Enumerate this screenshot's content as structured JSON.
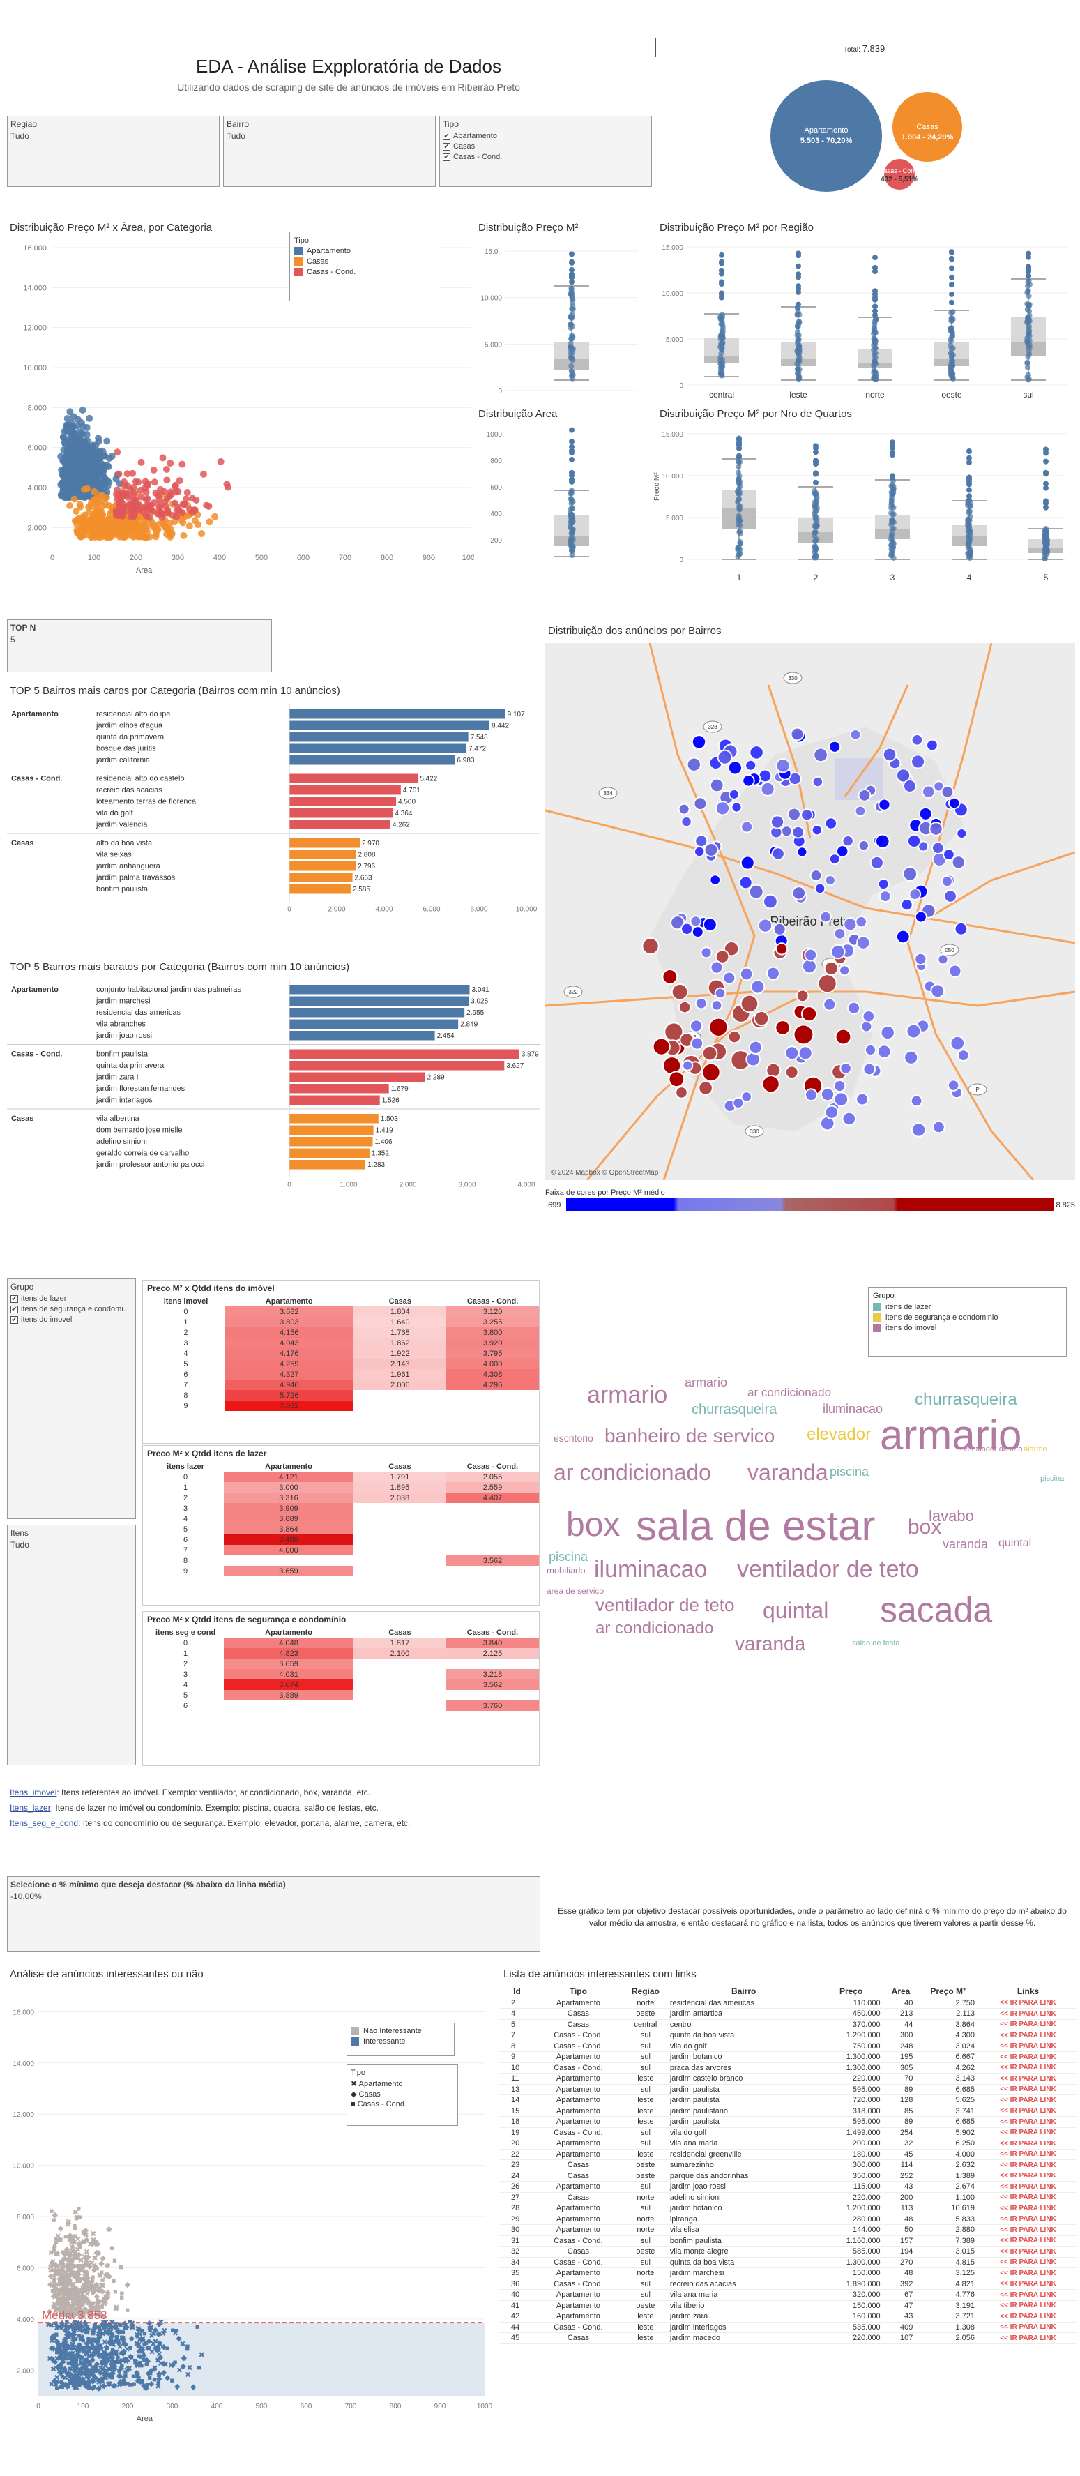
{
  "header": {
    "title": "EDA - Análise Expploratória de Dados",
    "subtitle": "Utilizando dados de scraping de site de anúncios de imóveis em Ribeirão Preto"
  },
  "total": {
    "label": "Total:",
    "value": "7.839"
  },
  "pie": {
    "apartamento": "Apartamento",
    "apartamento_val": "5.503 - 70,20%",
    "casas": "Casas",
    "casas_val": "1.904 - 24,29%",
    "cond": "Casas - Cond.",
    "cond_val": "432 - 5,51%"
  },
  "filters": {
    "regiao_label": "Regiao",
    "regiao_value": "Tudo",
    "bairro_label": "Bairro",
    "bairro_value": "Tudo",
    "tipo_label": "Tipo",
    "tipo_options": [
      "Apartamento",
      "Casas",
      "Casas - Cond."
    ]
  },
  "colors": {
    "apartamento": "#4e79a7",
    "casas": "#f28e2b",
    "casas_cond": "#e15759",
    "map_low": "#0000ff",
    "map_high": "#b20000"
  },
  "scatter": {
    "title": "Distribuição Preço M² x Área, por Categoria",
    "xlabel": "Area",
    "legend_title": "Tipo",
    "legend": [
      "Apartamento",
      "Casas",
      "Casas - Cond."
    ],
    "yticks": [
      "16.000",
      "14.000",
      "12.000",
      "10.000",
      "8.000",
      "6.000",
      "4.000",
      "2.000"
    ],
    "xticks": [
      "0",
      "100",
      "200",
      "300",
      "400",
      "500",
      "600",
      "700",
      "800",
      "900",
      "1000"
    ]
  },
  "box_preco": {
    "title": "Distribuição Preço M²",
    "yticks": [
      "15.0..",
      "10.000",
      "5.000",
      "0"
    ]
  },
  "box_area": {
    "title": "Distribuição Area",
    "yticks": [
      "1000",
      "800",
      "600",
      "400",
      "200"
    ]
  },
  "box_regiao": {
    "title": "Distribuição Preço M² por Região",
    "yticks": [
      "15.000",
      "10.000",
      "5.000",
      "0"
    ],
    "categories": [
      "central",
      "leste",
      "norte",
      "oeste",
      "sul"
    ]
  },
  "box_quartos": {
    "title": "Distribuição Preço M² por Nro de Quartos",
    "ylabel": "Preço M²",
    "yticks": [
      "15.000",
      "10.000",
      "5.000",
      "0"
    ],
    "categories": [
      "1",
      "2",
      "3",
      "4",
      "5"
    ]
  },
  "topn": {
    "label": "TOP N",
    "value": "5"
  },
  "caros": {
    "title": "TOP 5 Bairros mais caros por Categoria (Bairros com min 10 anúncios)",
    "xticks": [
      "0",
      "2.000",
      "4.000",
      "6.000",
      "8.000",
      "10.000"
    ],
    "groups": [
      {
        "name": "Apartamento",
        "rows": [
          [
            "residencial alto do ipe",
            "9.107",
            9107
          ],
          [
            "jardim olhos d'agua",
            "8.442",
            8442
          ],
          [
            "quinta da primavera",
            "7.548",
            7548
          ],
          [
            "bosque das juritis",
            "7.472",
            7472
          ],
          [
            "jardim california",
            "6.983",
            6983
          ]
        ]
      },
      {
        "name": "Casas - Cond.",
        "rows": [
          [
            "residencial alto do castelo",
            "5.422",
            5422
          ],
          [
            "recreio das acacias",
            "4.701",
            4701
          ],
          [
            "loteamento terras de florenca",
            "4.500",
            4500
          ],
          [
            "vila do golf",
            "4.364",
            4364
          ],
          [
            "jardim valencia",
            "4.262",
            4262
          ]
        ]
      },
      {
        "name": "Casas",
        "rows": [
          [
            "alto da boa vista",
            "2.970",
            2970
          ],
          [
            "vila seixas",
            "2.808",
            2808
          ],
          [
            "jardim anhanguera",
            "2.796",
            2796
          ],
          [
            "jardim palma travassos",
            "2.663",
            2663
          ],
          [
            "bonfim paulista",
            "2.585",
            2585
          ]
        ]
      }
    ]
  },
  "baratos": {
    "title": "TOP 5 Bairros mais baratos por Categoria (Bairros com min 10 anúncios)",
    "xticks": [
      "0",
      "1.000",
      "2.000",
      "3.000",
      "4.000"
    ],
    "groups": [
      {
        "name": "Apartamento",
        "rows": [
          [
            "conjunto habitacional jardim das palmeiras",
            "3.041",
            3041
          ],
          [
            "jardim marchesi",
            "3.025",
            3025
          ],
          [
            "residencial das americas",
            "2.955",
            2955
          ],
          [
            "vila abranches",
            "2.849",
            2849
          ],
          [
            "jardim joao rossi",
            "2.454",
            2454
          ]
        ]
      },
      {
        "name": "Casas - Cond.",
        "rows": [
          [
            "bonfim paulista",
            "3.879",
            3879
          ],
          [
            "quinta da primavera",
            "3.627",
            3627
          ],
          [
            "jardim zara I",
            "2.289",
            2289
          ],
          [
            "jardim florestan fernandes",
            "1.679",
            1679
          ],
          [
            "jardim interlagos",
            "1.526",
            1526
          ]
        ]
      },
      {
        "name": "Casas",
        "rows": [
          [
            "vila albertina",
            "1.503",
            1503
          ],
          [
            "dom bernardo jose mielle",
            "1.419",
            1419
          ],
          [
            "adelino simioni",
            "1.406",
            1406
          ],
          [
            "geraldo correia de carvalho",
            "1.352",
            1352
          ],
          [
            "jardim professor antonio palocci",
            "1.283",
            1283
          ]
        ]
      }
    ]
  },
  "map": {
    "title": "Distribuição dos anúncios por Bairros",
    "city": "Ribeirão Preto",
    "attribution": "© 2024 Mapbox © OpenStreetMap",
    "legend_title": "Faixa de cores por Preço M² médio",
    "legend_min": "699",
    "legend_max": "8.825",
    "roads": [
      "330",
      "328",
      "334",
      "322",
      "333",
      "051",
      "050",
      "P"
    ]
  },
  "grupo_filter": {
    "label": "Grupo",
    "options": [
      "itens de lazer",
      "itens de segurança e condomi..",
      "itens do imovel"
    ]
  },
  "itens_filter": {
    "label": "Itens",
    "value": "Tudo"
  },
  "hm_imovel": {
    "title": "Preco M² x Qtdd  itens do imóvel",
    "headers": [
      "itens imovel",
      "Apartamento",
      "Casas",
      "Casas - Cond."
    ],
    "rows": [
      [
        "0",
        "3.682",
        "1.804",
        "3.120"
      ],
      [
        "1",
        "3.803",
        "1.640",
        "3.255"
      ],
      [
        "2",
        "4.156",
        "1.768",
        "3.800"
      ],
      [
        "3",
        "4.043",
        "1.862",
        "3.920"
      ],
      [
        "4",
        "4.176",
        "1.922",
        "3.795"
      ],
      [
        "5",
        "4.259",
        "2.143",
        "4.000"
      ],
      [
        "6",
        "4.327",
        "1.961",
        "4.308"
      ],
      [
        "7",
        "4.946",
        "2.006",
        "4.296"
      ],
      [
        "8",
        "5.726",
        "",
        ""
      ],
      [
        "9",
        "7.032",
        "",
        ""
      ]
    ]
  },
  "hm_lazer": {
    "title": "Preco M² x Qtdd  itens de lazer",
    "headers": [
      "itens lazer",
      "Apartamento",
      "Casas",
      "Casas - Cond."
    ],
    "rows": [
      [
        "0",
        "4.121",
        "1.791",
        "2.055"
      ],
      [
        "1",
        "3.000",
        "1.895",
        "2.559"
      ],
      [
        "2",
        "3.316",
        "2.038",
        "4.407"
      ],
      [
        "3",
        "3.909",
        "",
        ""
      ],
      [
        "4",
        "3.889",
        "",
        ""
      ],
      [
        "5",
        "3.864",
        "",
        ""
      ],
      [
        "6",
        "8.400",
        "",
        ""
      ],
      [
        "7",
        "4.000",
        "",
        ""
      ],
      [
        "8",
        "",
        "",
        "3.562"
      ],
      [
        "9",
        "3.659",
        "",
        ""
      ]
    ]
  },
  "hm_seg": {
    "title": "Preco M² x Qtdd  itens de segurança e condomínio",
    "headers": [
      "itens seg e cond",
      "Apartamento",
      "Casas",
      "Casas - Cond."
    ],
    "rows": [
      [
        "0",
        "4.048",
        "1.817",
        "3.840"
      ],
      [
        "1",
        "4.823",
        "2.100",
        "2.125"
      ],
      [
        "2",
        "3.659",
        "",
        ""
      ],
      [
        "3",
        "4.031",
        "",
        "3.218"
      ],
      [
        "4",
        "6.674",
        "",
        "3.562"
      ],
      [
        "5",
        "3.889",
        "",
        ""
      ],
      [
        "6",
        "",
        "",
        "3.760"
      ]
    ]
  },
  "wordcloud": {
    "legend_title": "Grupo",
    "legend": [
      "itens de lazer",
      "itens de segurança e condominio",
      "itens do imovel"
    ]
  },
  "notes": {
    "imovel_key": "Itens_imovel",
    "imovel_text": ": Itens referentes ao imóvel. Exemplo: ventilador, ar condicionado, box, varanda, etc.",
    "lazer_key": "Itens_lazer",
    "lazer_text": ": Itens de lazer no imóvel ou condomínio. Exemplo: piscina, quadra, salão de festas, etc.",
    "seg_key": "Itens_seg_e_cond",
    "seg_text": ": Itens do condomínio ou de segurança. Exemplo: elevador, portaria, alarme, camera, etc."
  },
  "param": {
    "label": "Selecione o % mínimo que deseja destacar (% abaixo da linha média)",
    "value": "-10,00%"
  },
  "param_note": "Esse gráfico tem por objetivo destacar possíveis oportunidades, onde o parâmetro ao lado definirá o % mínimo do preço do m² abaixo do valor médio da amostra, e então destacará no gráfico e na lista, todos os anúncios que tiverem valores a partir desse %.",
  "interest": {
    "title": "Análise de anúncios interessantes ou não",
    "xlabel": "Area",
    "media": "Média 3.858",
    "legend": [
      "Não Interessante",
      "Interessante"
    ],
    "tipo_title": "Tipo",
    "tipo": [
      "Apartamento",
      "Casas",
      "Casas - Cond."
    ],
    "yticks": [
      "16.000",
      "14.000",
      "12.000",
      "10.000",
      "8.000",
      "6.000",
      "4.000",
      "2.000"
    ],
    "xticks": [
      "0",
      "100",
      "200",
      "300",
      "400",
      "500",
      "600",
      "700",
      "800",
      "900",
      "1000"
    ]
  },
  "list": {
    "title": "Lista de anúncios interessantes com links",
    "headers": [
      "Id",
      "Tipo",
      "Regiao",
      "Bairro",
      "Preço",
      "Area",
      "Preço M²",
      "Links"
    ],
    "link_label": "<< IR PARA LINK",
    "rows": [
      [
        "2",
        "Apartamento",
        "norte",
        "residencial das americas",
        "110.000",
        "40",
        "2.750"
      ],
      [
        "4",
        "Casas",
        "oeste",
        "jardim antartica",
        "450.000",
        "213",
        "2.113"
      ],
      [
        "5",
        "Casas",
        "central",
        "centro",
        "370.000",
        "44",
        "3.864"
      ],
      [
        "7",
        "Casas - Cond.",
        "sul",
        "quinta da boa vista",
        "1.290.000",
        "300",
        "4.300"
      ],
      [
        "8",
        "Casas - Cond.",
        "sul",
        "vila do golf",
        "750.000",
        "248",
        "3.024"
      ],
      [
        "9",
        "Apartamento",
        "sul",
        "jardim botanico",
        "1.300.000",
        "195",
        "6.667"
      ],
      [
        "10",
        "Casas - Cond.",
        "sul",
        "praca das arvores",
        "1.300.000",
        "305",
        "4.262"
      ],
      [
        "11",
        "Apartamento",
        "leste",
        "jardim castelo branco",
        "220.000",
        "70",
        "3.143"
      ],
      [
        "13",
        "Apartamento",
        "sul",
        "jardim paulista",
        "595.000",
        "89",
        "6.685"
      ],
      [
        "14",
        "Apartamento",
        "leste",
        "jardim paulista",
        "720.000",
        "128",
        "5.625"
      ],
      [
        "15",
        "Apartamento",
        "leste",
        "jardim paulistano",
        "318.000",
        "85",
        "3.741"
      ],
      [
        "18",
        "Apartamento",
        "leste",
        "jardim paulista",
        "595.000",
        "89",
        "6.685"
      ],
      [
        "19",
        "Casas - Cond.",
        "sul",
        "vila do golf",
        "1.499.000",
        "254",
        "5.902"
      ],
      [
        "20",
        "Apartamento",
        "sul",
        "vila ana maria",
        "200.000",
        "32",
        "6.250"
      ],
      [
        "22",
        "Apartamento",
        "leste",
        "residencial greenville",
        "180.000",
        "45",
        "4.000"
      ],
      [
        "23",
        "Casas",
        "oeste",
        "sumarezinho",
        "300.000",
        "114",
        "2.632"
      ],
      [
        "24",
        "Casas",
        "oeste",
        "parque das andorinhas",
        "350.000",
        "252",
        "1.389"
      ],
      [
        "26",
        "Apartamento",
        "sul",
        "jardim joao rossi",
        "115.000",
        "43",
        "2.674"
      ],
      [
        "27",
        "Casas",
        "norte",
        "adelino simioni",
        "220.000",
        "200",
        "1.100"
      ],
      [
        "28",
        "Apartamento",
        "sul",
        "jardim botanico",
        "1.200.000",
        "113",
        "10.619"
      ],
      [
        "29",
        "Apartamento",
        "norte",
        "ipiranga",
        "280.000",
        "48",
        "5.833"
      ],
      [
        "30",
        "Apartamento",
        "norte",
        "vila elisa",
        "144.000",
        "50",
        "2.880"
      ],
      [
        "31",
        "Casas - Cond.",
        "sul",
        "bonfim paulista",
        "1.160.000",
        "157",
        "7.389"
      ],
      [
        "32",
        "Casas",
        "oeste",
        "vila monte alegre",
        "585.000",
        "194",
        "3.015"
      ],
      [
        "34",
        "Casas - Cond.",
        "sul",
        "quinta da boa vista",
        "1.300.000",
        "270",
        "4.815"
      ],
      [
        "35",
        "Apartamento",
        "norte",
        "jardim marchesi",
        "150.000",
        "48",
        "3.125"
      ],
      [
        "36",
        "Casas - Cond.",
        "sul",
        "recreio das acacias",
        "1.890.000",
        "392",
        "4.821"
      ],
      [
        "40",
        "Apartamento",
        "sul",
        "vila ana maria",
        "320.000",
        "67",
        "4.776"
      ],
      [
        "41",
        "Apartamento",
        "oeste",
        "vila tiberio",
        "150.000",
        "47",
        "3.191"
      ],
      [
        "42",
        "Apartamento",
        "leste",
        "jardim zara",
        "160.000",
        "43",
        "3.721"
      ],
      [
        "44",
        "Casas - Cond.",
        "leste",
        "jardim interlagos",
        "535.000",
        "409",
        "1.308"
      ],
      [
        "45",
        "Casas",
        "leste",
        "jardim macedo",
        "220.000",
        "107",
        "2.056"
      ]
    ]
  }
}
